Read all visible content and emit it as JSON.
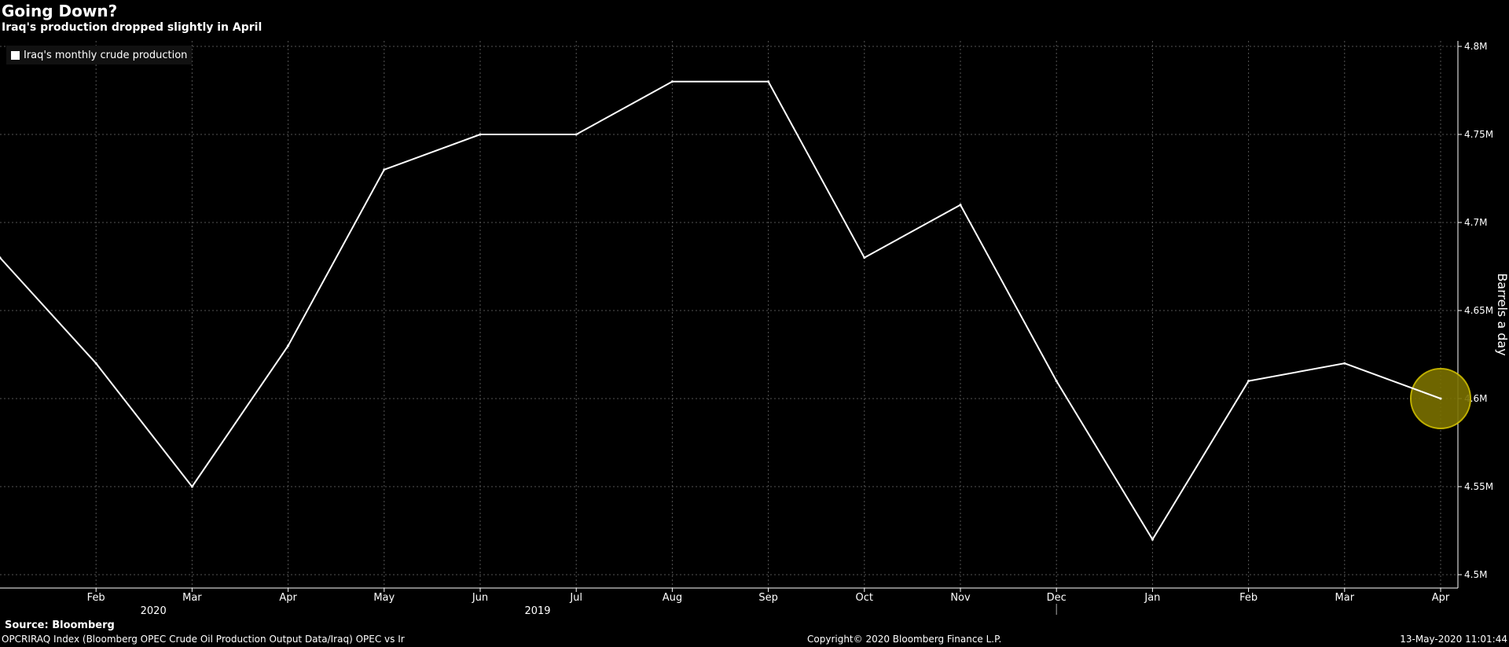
{
  "header": {
    "title": "Going Down?",
    "subtitle": "Iraq's production dropped slightly in April"
  },
  "footer": {
    "source": "Source: Bloomberg",
    "ticker": "OPCRIRAQ Index (Bloomberg OPEC Crude Oil Production Output Data/Iraq) OPEC vs Ir",
    "copyright": "Copyright© 2020 Bloomberg Finance L.P.",
    "timestamp": "13-May-2020 11:01:44"
  },
  "colors": {
    "background": "#000000",
    "line": "#ffffff",
    "grid": "#555555",
    "highlight": "#7a7100",
    "highlight_stroke": "#d4c300"
  },
  "chart_data": {
    "type": "line",
    "title": "Going Down?",
    "subtitle": "Iraq's production dropped slightly in April",
    "ylabel": "Barrels a day",
    "ylim": [
      4.5,
      4.8
    ],
    "y_ticks": [
      "4.5M",
      "4.55M",
      "4.6M",
      "4.65M",
      "4.7M",
      "4.75M",
      "4.8M"
    ],
    "y_tick_values": [
      4.5,
      4.55,
      4.6,
      4.65,
      4.7,
      4.75,
      4.8
    ],
    "x_labels": [
      "Feb",
      "Mar",
      "Apr",
      "May",
      "Jun",
      "Jul",
      "Aug",
      "Sep",
      "Oct",
      "Nov",
      "Dec",
      "Jan",
      "Feb",
      "Mar",
      "Apr"
    ],
    "year_labels": [
      {
        "label": "2019",
        "month": "Jun"
      },
      {
        "label": "2020",
        "month": "Feb"
      }
    ],
    "legend": {
      "position": "top-left",
      "entries": [
        "Iraq's monthly crude production"
      ]
    },
    "grid": true,
    "series": [
      {
        "name": "Iraq's monthly crude production",
        "x": [
          "Jan 2019",
          "Feb 2019",
          "Mar 2019",
          "Apr 2019",
          "May 2019",
          "Jun 2019",
          "Jul 2019",
          "Aug 2019",
          "Sep 2019",
          "Oct 2019",
          "Nov 2019",
          "Dec 2019",
          "Jan 2020",
          "Feb 2020",
          "Mar 2020",
          "Apr 2020"
        ],
        "values": [
          4.68,
          4.62,
          4.55,
          4.63,
          4.73,
          4.75,
          4.75,
          4.78,
          4.78,
          4.68,
          4.71,
          4.61,
          4.52,
          4.61,
          4.62,
          4.6
        ]
      }
    ],
    "highlight": {
      "point": "Apr 2020",
      "value": 4.6
    }
  }
}
